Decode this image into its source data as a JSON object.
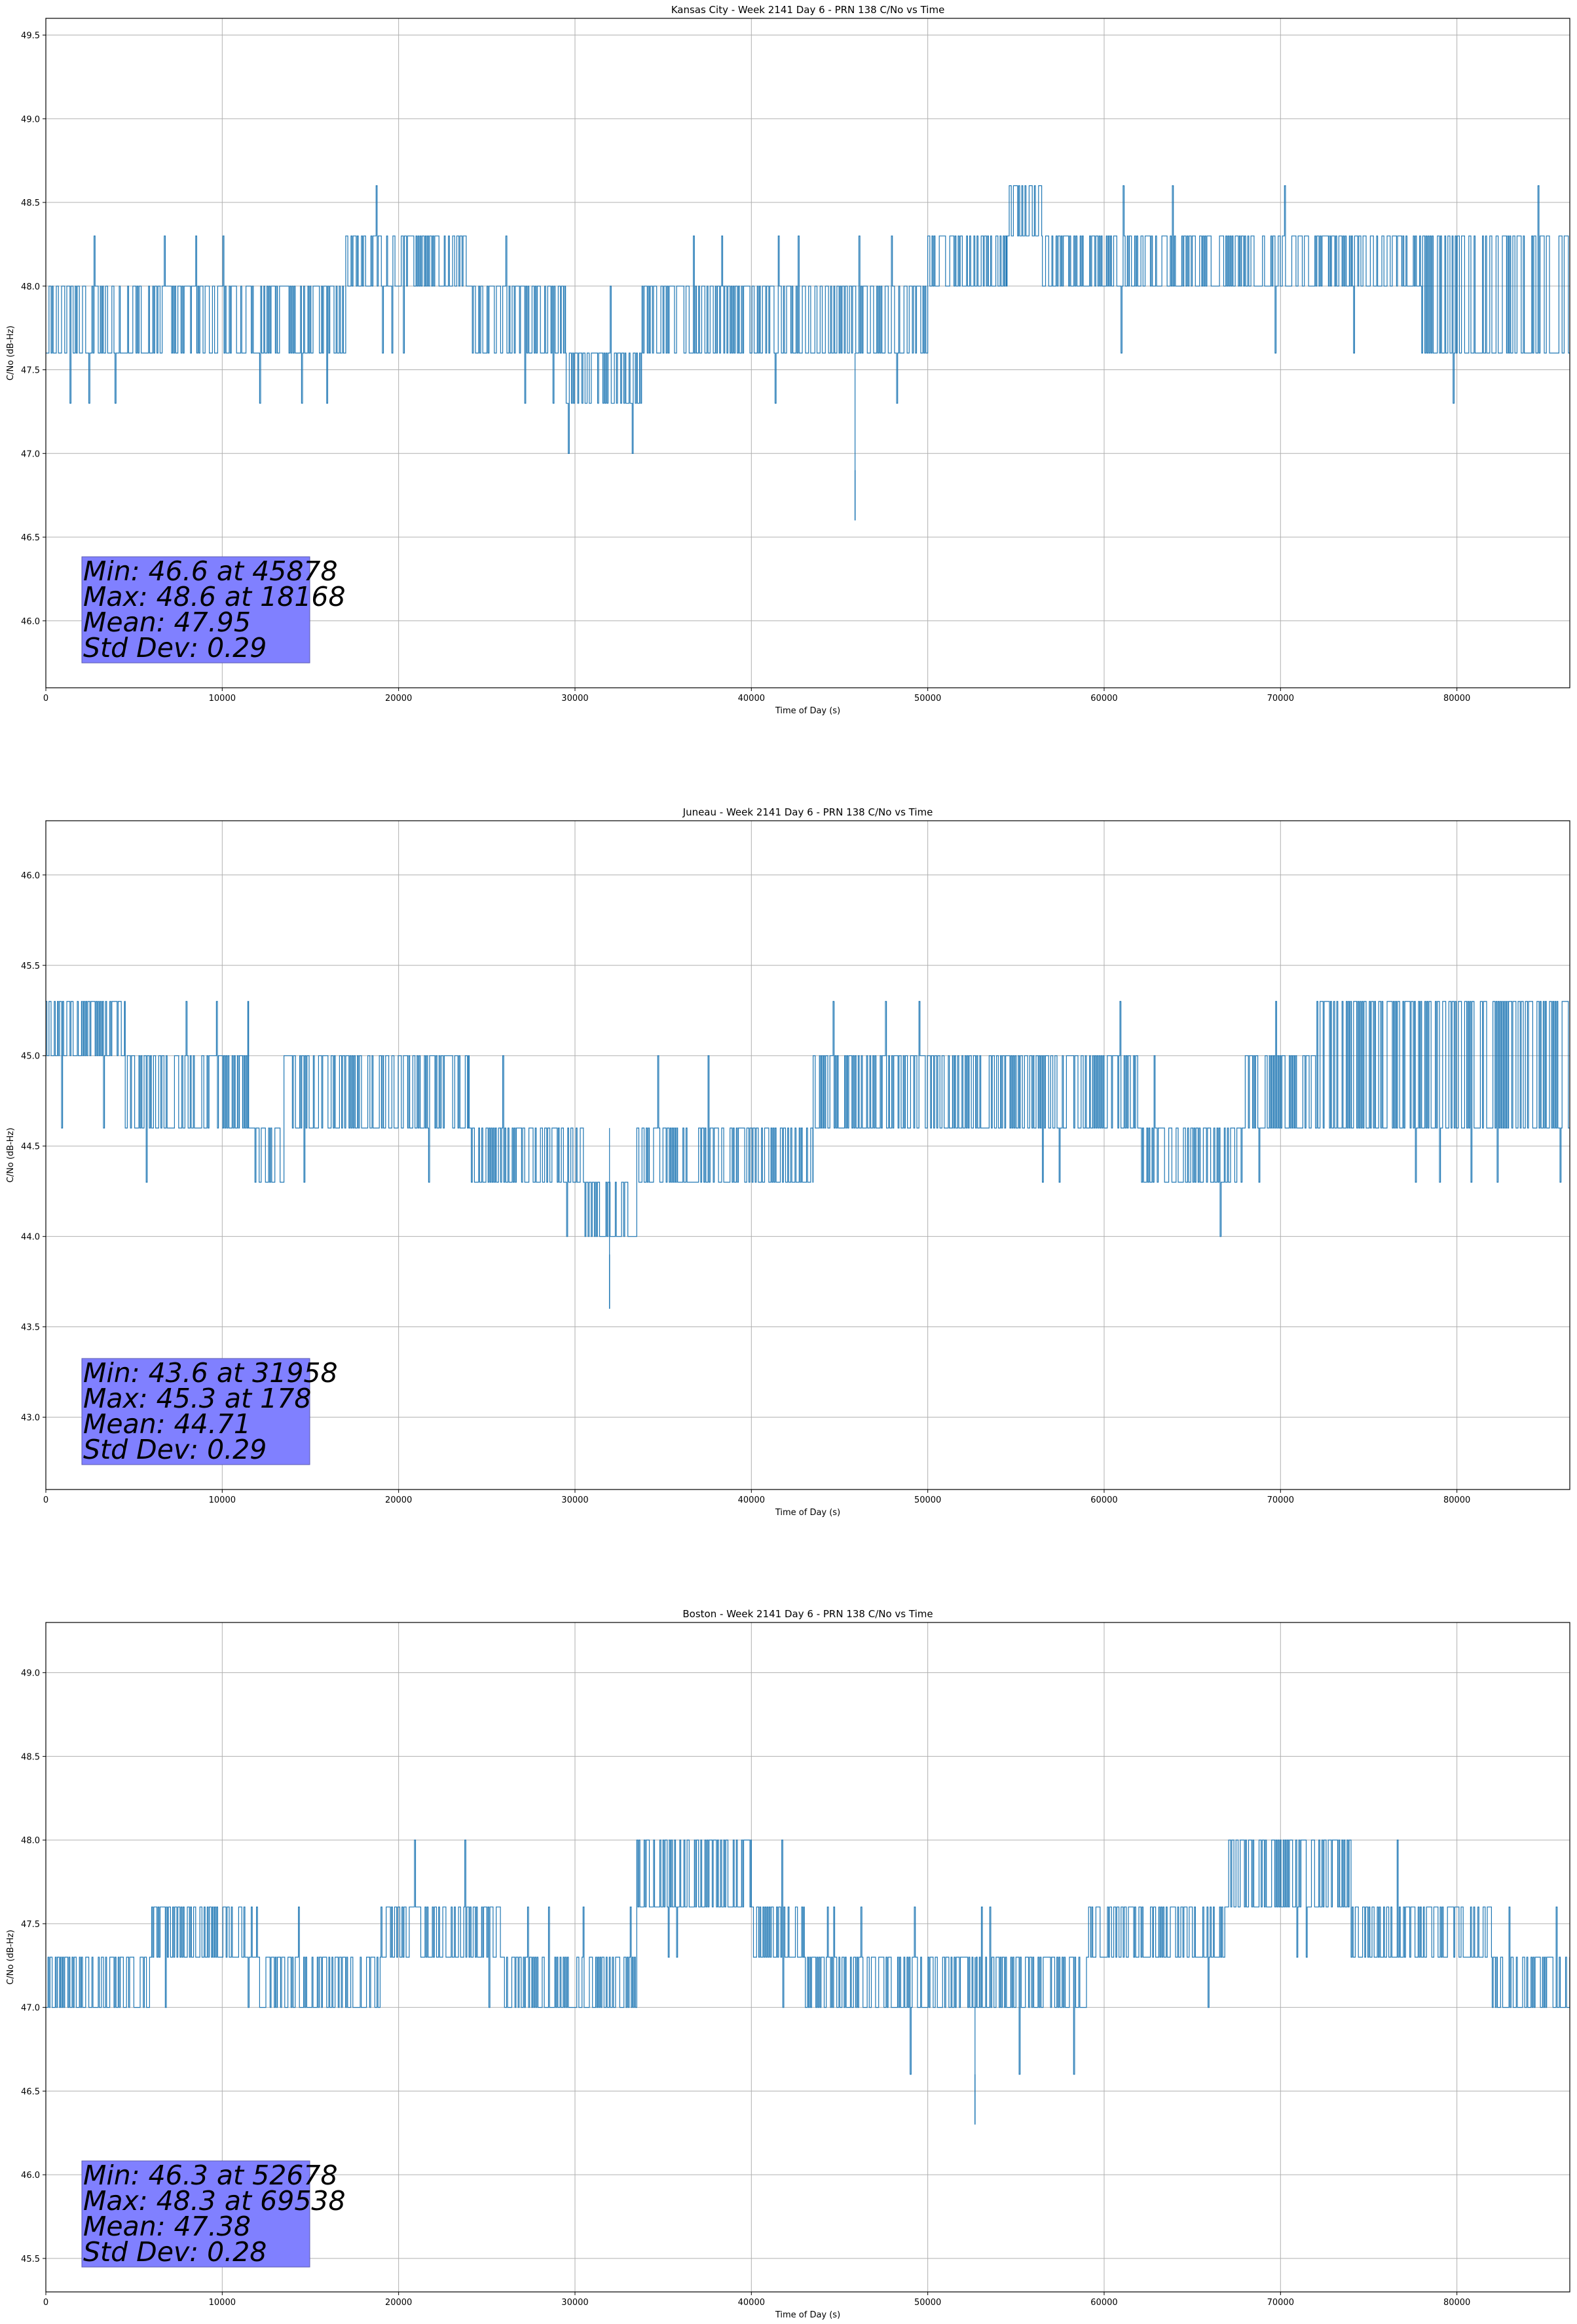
{
  "colors": {
    "series": "#1f77b4",
    "grid": "#b0b0b0",
    "stats_box_fill": "#8080ff",
    "stats_box_edge": "#5b5bb0",
    "axis": "#000000"
  },
  "chart_data": [
    {
      "type": "line",
      "title": "Kansas City - Week 2141 Day 6 - PRN 138 C/No vs Time",
      "xlabel": "Time of Day (s)",
      "ylabel": "C/No (dB-Hz)",
      "xlim": [
        0,
        86400
      ],
      "ylim": [
        45.6,
        49.6
      ],
      "xticks": [
        0,
        10000,
        20000,
        30000,
        40000,
        50000,
        60000,
        70000,
        80000
      ],
      "yticks": [
        46.0,
        46.5,
        47.0,
        47.5,
        48.0,
        48.5,
        49.0,
        49.5
      ],
      "grid": true,
      "series_name": "C/No",
      "quantization_step": 0.3,
      "segments": [
        {
          "from": 0,
          "to": 12000,
          "lo": 47.6,
          "hi": 48.0,
          "spikes_up": [
            48.3
          ],
          "spikes_down": [
            47.3
          ],
          "density": 0.5
        },
        {
          "from": 12000,
          "to": 17000,
          "lo": 47.6,
          "hi": 48.0,
          "spikes_up": [
            48.3
          ],
          "spikes_down": [
            47.3
          ],
          "density": 0.5
        },
        {
          "from": 17000,
          "to": 24000,
          "lo": 48.0,
          "hi": 48.3,
          "spikes_up": [
            48.6
          ],
          "spikes_down": [
            47.6
          ],
          "density": 0.5
        },
        {
          "from": 24000,
          "to": 29500,
          "lo": 47.6,
          "hi": 48.0,
          "spikes_up": [
            48.3
          ],
          "spikes_down": [
            47.3
          ],
          "density": 0.45
        },
        {
          "from": 29500,
          "to": 33800,
          "lo": 47.3,
          "hi": 47.6,
          "spikes_up": [
            48.0
          ],
          "spikes_down": [
            47.0
          ],
          "density": 0.45
        },
        {
          "from": 33800,
          "to": 50000,
          "lo": 47.6,
          "hi": 48.0,
          "spikes_up": [
            48.3
          ],
          "spikes_down": [
            47.3
          ],
          "density": 0.5
        },
        {
          "from": 50000,
          "to": 54500,
          "lo": 48.0,
          "hi": 48.3,
          "spikes_up": [
            48.6
          ],
          "spikes_down": [
            47.6
          ],
          "density": 0.45
        },
        {
          "from": 54500,
          "to": 56500,
          "lo": 48.3,
          "hi": 48.6,
          "spikes_up": [],
          "spikes_down": [
            48.0
          ],
          "density": 0.4
        },
        {
          "from": 56500,
          "to": 72000,
          "lo": 48.0,
          "hi": 48.3,
          "spikes_up": [
            48.6
          ],
          "spikes_down": [
            47.6
          ],
          "density": 0.45
        },
        {
          "from": 72000,
          "to": 78000,
          "lo": 48.0,
          "hi": 48.3,
          "spikes_up": [
            48.6
          ],
          "spikes_down": [
            47.6
          ],
          "density": 0.5
        },
        {
          "from": 78000,
          "to": 86400,
          "lo": 47.6,
          "hi": 48.3,
          "spikes_up": [
            48.6
          ],
          "spikes_down": [
            47.3
          ],
          "density": 0.45
        }
      ],
      "outliers": [
        {
          "x": 45878,
          "y": 46.6
        }
      ],
      "stats_lines": [
        "Min: 46.6 at 45878",
        "Max: 48.6 at 18168",
        "Mean: 47.95",
        "Std Dev: 0.29"
      ]
    },
    {
      "type": "line",
      "title": "Juneau - Week 2141 Day 6 - PRN 138 C/No vs Time",
      "xlabel": "Time of Day (s)",
      "ylabel": "C/No (dB-Hz)",
      "xlim": [
        0,
        86400
      ],
      "ylim": [
        42.6,
        46.3
      ],
      "xticks": [
        0,
        10000,
        20000,
        30000,
        40000,
        50000,
        60000,
        70000,
        80000
      ],
      "yticks": [
        43.0,
        43.5,
        44.0,
        44.5,
        45.0,
        45.5,
        46.0
      ],
      "grid": true,
      "series_name": "C/No",
      "quantization_step": 0.3,
      "segments": [
        {
          "from": 0,
          "to": 4500,
          "lo": 45.0,
          "hi": 45.3,
          "spikes_up": [],
          "spikes_down": [
            44.6,
            44.3
          ],
          "density": 0.45
        },
        {
          "from": 4500,
          "to": 11500,
          "lo": 44.6,
          "hi": 45.0,
          "spikes_up": [
            45.3
          ],
          "spikes_down": [
            44.3
          ],
          "density": 0.5
        },
        {
          "from": 11500,
          "to": 13500,
          "lo": 44.3,
          "hi": 44.6,
          "spikes_up": [
            45.0
          ],
          "spikes_down": [],
          "density": 0.45
        },
        {
          "from": 13500,
          "to": 24000,
          "lo": 44.6,
          "hi": 45.0,
          "spikes_up": [],
          "spikes_down": [
            44.3
          ],
          "density": 0.5
        },
        {
          "from": 24000,
          "to": 30500,
          "lo": 44.3,
          "hi": 44.6,
          "spikes_up": [
            45.0
          ],
          "spikes_down": [
            44.0
          ],
          "density": 0.45
        },
        {
          "from": 30500,
          "to": 33500,
          "lo": 44.0,
          "hi": 44.3,
          "spikes_up": [
            44.6
          ],
          "spikes_down": [
            43.6
          ],
          "density": 0.45
        },
        {
          "from": 33500,
          "to": 43500,
          "lo": 44.3,
          "hi": 44.6,
          "spikes_up": [
            45.0
          ],
          "spikes_down": [
            44.0
          ],
          "density": 0.45
        },
        {
          "from": 43500,
          "to": 54000,
          "lo": 44.6,
          "hi": 45.0,
          "spikes_up": [
            45.3
          ],
          "spikes_down": [
            44.3
          ],
          "density": 0.5
        },
        {
          "from": 54000,
          "to": 62000,
          "lo": 44.6,
          "hi": 45.0,
          "spikes_up": [
            45.3
          ],
          "spikes_down": [
            44.3
          ],
          "density": 0.5
        },
        {
          "from": 62000,
          "to": 68000,
          "lo": 44.3,
          "hi": 44.6,
          "spikes_up": [
            45.0
          ],
          "spikes_down": [
            44.0
          ],
          "density": 0.45
        },
        {
          "from": 68000,
          "to": 72000,
          "lo": 44.6,
          "hi": 45.0,
          "spikes_up": [
            45.3
          ],
          "spikes_down": [
            44.3
          ],
          "density": 0.45
        },
        {
          "from": 72000,
          "to": 86400,
          "lo": 44.6,
          "hi": 45.3,
          "spikes_up": [],
          "spikes_down": [
            44.3
          ],
          "density": 0.5
        }
      ],
      "outliers": [
        {
          "x": 31958,
          "y": 43.6
        }
      ],
      "stats_lines": [
        "Min: 43.6 at 31958",
        "Max: 45.3 at 178",
        "Mean: 44.71",
        "Std Dev: 0.29"
      ]
    },
    {
      "type": "line",
      "title": "Boston - Week 2141 Day 6 - PRN 138 C/No vs Time",
      "xlabel": "Time of Day (s)",
      "ylabel": "C/No (dB-Hz)",
      "xlim": [
        0,
        86400
      ],
      "ylim": [
        45.3,
        49.3
      ],
      "xticks": [
        0,
        10000,
        20000,
        30000,
        40000,
        50000,
        60000,
        70000,
        80000
      ],
      "yticks": [
        45.5,
        46.0,
        46.5,
        47.0,
        47.5,
        48.0,
        48.5,
        49.0
      ],
      "grid": true,
      "series_name": "C/No",
      "quantization_step": 0.3,
      "segments": [
        {
          "from": 0,
          "to": 6000,
          "lo": 47.0,
          "hi": 47.3,
          "spikes_up": [],
          "spikes_down": [
            46.6
          ],
          "density": 0.45
        },
        {
          "from": 6000,
          "to": 12000,
          "lo": 47.3,
          "hi": 47.6,
          "spikes_up": [
            48.0
          ],
          "spikes_down": [
            47.0
          ],
          "density": 0.45
        },
        {
          "from": 12000,
          "to": 19000,
          "lo": 47.0,
          "hi": 47.3,
          "spikes_up": [
            47.6
          ],
          "spikes_down": [
            46.6
          ],
          "density": 0.45
        },
        {
          "from": 19000,
          "to": 26000,
          "lo": 47.3,
          "hi": 47.6,
          "spikes_up": [
            48.0
          ],
          "spikes_down": [
            47.0
          ],
          "density": 0.5
        },
        {
          "from": 26000,
          "to": 33500,
          "lo": 47.0,
          "hi": 47.3,
          "spikes_up": [
            47.6
          ],
          "spikes_down": [
            46.6
          ],
          "density": 0.45
        },
        {
          "from": 33500,
          "to": 40000,
          "lo": 47.6,
          "hi": 48.0,
          "spikes_up": [],
          "spikes_down": [
            47.3
          ],
          "density": 0.45
        },
        {
          "from": 40000,
          "to": 43000,
          "lo": 47.3,
          "hi": 47.6,
          "spikes_up": [
            48.0
          ],
          "spikes_down": [
            47.0
          ],
          "density": 0.45
        },
        {
          "from": 43000,
          "to": 59000,
          "lo": 47.0,
          "hi": 47.3,
          "spikes_up": [
            47.6
          ],
          "spikes_down": [
            46.6
          ],
          "density": 0.45
        },
        {
          "from": 59000,
          "to": 67000,
          "lo": 47.3,
          "hi": 47.6,
          "spikes_up": [
            48.0
          ],
          "spikes_down": [
            47.0
          ],
          "density": 0.5
        },
        {
          "from": 67000,
          "to": 74000,
          "lo": 47.6,
          "hi": 48.0,
          "spikes_up": [
            48.3
          ],
          "spikes_down": [
            47.3
          ],
          "density": 0.5
        },
        {
          "from": 74000,
          "to": 82000,
          "lo": 47.3,
          "hi": 47.6,
          "spikes_up": [
            48.0
          ],
          "spikes_down": [
            47.0
          ],
          "density": 0.5
        },
        {
          "from": 82000,
          "to": 86400,
          "lo": 47.0,
          "hi": 47.3,
          "spikes_up": [
            47.6
          ],
          "spikes_down": [
            46.6
          ],
          "density": 0.45
        }
      ],
      "outliers": [
        {
          "x": 52678,
          "y": 46.3
        }
      ],
      "stats_lines": [
        "Min: 46.3 at 52678",
        "Max: 48.3 at 69538",
        "Mean: 47.38",
        "Std Dev: 0.28"
      ]
    }
  ]
}
